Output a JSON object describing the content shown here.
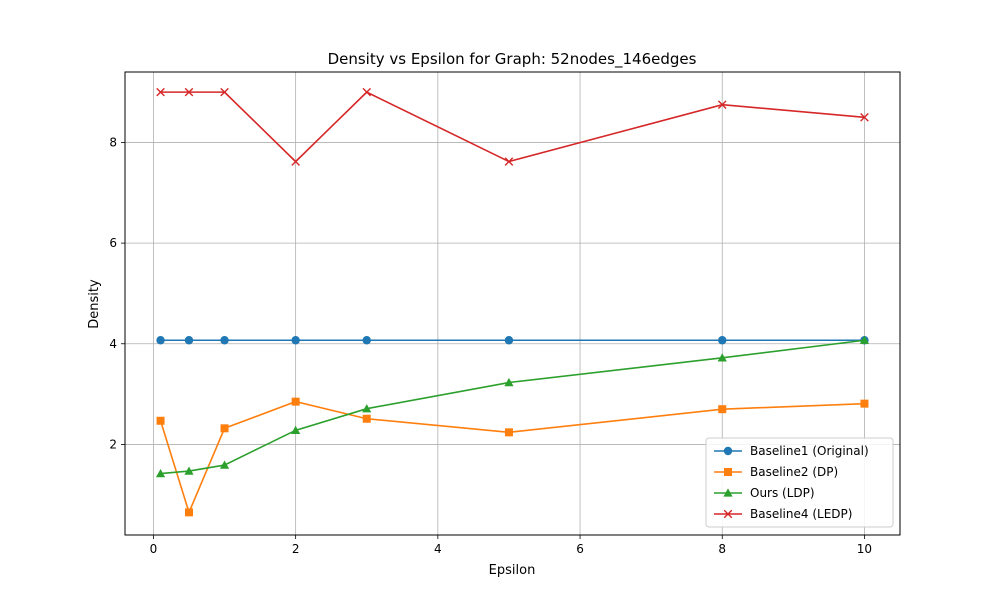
{
  "chart_data": {
    "type": "line",
    "title": "Density vs Epsilon for Graph: 52nodes_146edges",
    "xlabel": "Epsilon",
    "ylabel": "Density",
    "xlim": [
      -0.4,
      10.5
    ],
    "ylim": [
      0.2,
      9.4
    ],
    "xticks": [
      0,
      2,
      4,
      6,
      8,
      10
    ],
    "yticks": [
      2,
      4,
      6,
      8
    ],
    "grid": true,
    "legend_position": "lower-right",
    "x": [
      0.1,
      0.5,
      1,
      2,
      3,
      5,
      8,
      10
    ],
    "series": [
      {
        "name": "Baseline1 (Original)",
        "color": "#1f77b4",
        "marker": "circle",
        "values": [
          4.07,
          4.07,
          4.07,
          4.07,
          4.07,
          4.07,
          4.07,
          4.07
        ]
      },
      {
        "name": "Baseline2 (DP)",
        "color": "#ff7f0e",
        "marker": "square",
        "values": [
          2.47,
          0.65,
          2.32,
          2.85,
          2.51,
          2.24,
          2.7,
          2.81
        ]
      },
      {
        "name": "Ours (LDP)",
        "color": "#2ca02c",
        "marker": "triangle",
        "values": [
          1.42,
          1.47,
          1.59,
          2.28,
          2.71,
          3.23,
          3.72,
          4.07
        ]
      },
      {
        "name": "Baseline4 (LEDP)",
        "color": "#d62728",
        "marker": "x",
        "values": [
          9.0,
          9.0,
          9.0,
          7.62,
          9.0,
          7.62,
          8.75,
          8.5
        ]
      }
    ]
  }
}
